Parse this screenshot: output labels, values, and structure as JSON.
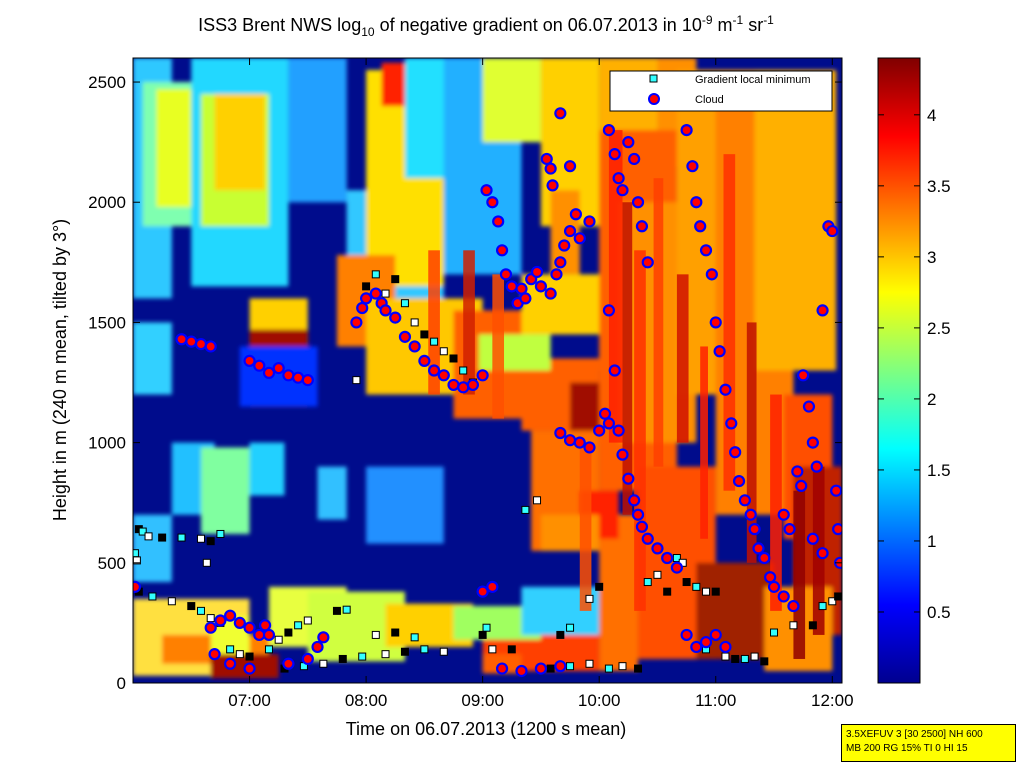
{
  "chart_data": {
    "type": "heatmap",
    "title": {
      "pre": "ISS3 Brent NWS log",
      "sub1": "10",
      "mid1": " of negative gradient on 06.07.2013 in 10",
      "sup1": "-9",
      "mid2": " m",
      "sup2": "-1",
      "mid3": " sr",
      "sup3": "-1"
    },
    "xlabel": "Time on 06.07.2013 (1200 s mean)",
    "ylabel": "Height in m (240 m mean, tilted by 3°)",
    "xlim": [
      "06:00",
      "12:05"
    ],
    "ylim": [
      0,
      2600
    ],
    "x_ticks": [
      "07:00",
      "08:00",
      "09:00",
      "10:00",
      "11:00",
      "12:00"
    ],
    "y_ticks": [
      0,
      500,
      1000,
      1500,
      2000,
      2500
    ],
    "colorbar": {
      "colormap": "jet",
      "range": [
        0,
        4.4
      ],
      "ticks": [
        0.5,
        1,
        1.5,
        2,
        2.5,
        3,
        3.5,
        4
      ]
    },
    "legend": {
      "placement": "top-right",
      "entries": [
        {
          "label": "Gradient local minimum",
          "marker": "square",
          "color": "#33ffff"
        },
        {
          "label": "Cloud",
          "marker": "circle",
          "color": "#ff0000"
        }
      ]
    },
    "series": [
      {
        "name": "Gradient local minimum",
        "points": [
          {
            "x": "06:01",
            "y": 540
          },
          {
            "x": "06:02",
            "y": 510
          },
          {
            "x": "06:03",
            "y": 640
          },
          {
            "x": "06:05",
            "y": 630
          },
          {
            "x": "06:08",
            "y": 610
          },
          {
            "x": "06:15",
            "y": 605
          },
          {
            "x": "06:25",
            "y": 605
          },
          {
            "x": "06:35",
            "y": 600
          },
          {
            "x": "06:40",
            "y": 590
          },
          {
            "x": "06:45",
            "y": 620
          },
          {
            "x": "06:38",
            "y": 500
          },
          {
            "x": "06:03",
            "y": 380
          },
          {
            "x": "06:10",
            "y": 360
          },
          {
            "x": "06:20",
            "y": 340
          },
          {
            "x": "06:30",
            "y": 320
          },
          {
            "x": "06:35",
            "y": 300
          },
          {
            "x": "06:40",
            "y": 270
          },
          {
            "x": "06:45",
            "y": 250
          },
          {
            "x": "06:50",
            "y": 140
          },
          {
            "x": "06:55",
            "y": 120
          },
          {
            "x": "07:00",
            "y": 110
          },
          {
            "x": "07:10",
            "y": 140
          },
          {
            "x": "07:15",
            "y": 180
          },
          {
            "x": "07:20",
            "y": 210
          },
          {
            "x": "07:25",
            "y": 240
          },
          {
            "x": "07:30",
            "y": 260
          },
          {
            "x": "07:18",
            "y": 60
          },
          {
            "x": "07:28",
            "y": 70
          },
          {
            "x": "07:38",
            "y": 80
          },
          {
            "x": "07:48",
            "y": 100
          },
          {
            "x": "07:58",
            "y": 110
          },
          {
            "x": "08:10",
            "y": 120
          },
          {
            "x": "08:20",
            "y": 130
          },
          {
            "x": "08:30",
            "y": 140
          },
          {
            "x": "08:40",
            "y": 130
          },
          {
            "x": "07:45",
            "y": 300
          },
          {
            "x": "07:50",
            "y": 305
          },
          {
            "x": "08:05",
            "y": 200
          },
          {
            "x": "08:15",
            "y": 210
          },
          {
            "x": "08:25",
            "y": 190
          },
          {
            "x": "07:55",
            "y": 1260
          },
          {
            "x": "08:00",
            "y": 1650
          },
          {
            "x": "08:05",
            "y": 1700
          },
          {
            "x": "08:10",
            "y": 1620
          },
          {
            "x": "08:15",
            "y": 1680
          },
          {
            "x": "08:20",
            "y": 1580
          },
          {
            "x": "08:25",
            "y": 1500
          },
          {
            "x": "08:30",
            "y": 1450
          },
          {
            "x": "08:35",
            "y": 1420
          },
          {
            "x": "08:40",
            "y": 1380
          },
          {
            "x": "08:45",
            "y": 1350
          },
          {
            "x": "08:50",
            "y": 1300
          },
          {
            "x": "08:55",
            "y": 1250
          },
          {
            "x": "09:00",
            "y": 200
          },
          {
            "x": "09:02",
            "y": 230
          },
          {
            "x": "09:05",
            "y": 140
          },
          {
            "x": "09:15",
            "y": 140
          },
          {
            "x": "09:22",
            "y": 720
          },
          {
            "x": "09:28",
            "y": 760
          },
          {
            "x": "09:35",
            "y": 60
          },
          {
            "x": "09:45",
            "y": 70
          },
          {
            "x": "09:55",
            "y": 80
          },
          {
            "x": "09:40",
            "y": 200
          },
          {
            "x": "09:45",
            "y": 230
          },
          {
            "x": "09:55",
            "y": 350
          },
          {
            "x": "10:00",
            "y": 400
          },
          {
            "x": "10:05",
            "y": 60
          },
          {
            "x": "10:12",
            "y": 70
          },
          {
            "x": "10:20",
            "y": 60
          },
          {
            "x": "10:25",
            "y": 420
          },
          {
            "x": "10:30",
            "y": 450
          },
          {
            "x": "10:35",
            "y": 380
          },
          {
            "x": "10:40",
            "y": 520
          },
          {
            "x": "10:43",
            "y": 500
          },
          {
            "x": "10:45",
            "y": 420
          },
          {
            "x": "10:50",
            "y": 400
          },
          {
            "x": "10:55",
            "y": 380
          },
          {
            "x": "11:00",
            "y": 380
          },
          {
            "x": "10:55",
            "y": 140
          },
          {
            "x": "11:05",
            "y": 110
          },
          {
            "x": "11:10",
            "y": 100
          },
          {
            "x": "11:15",
            "y": 100
          },
          {
            "x": "11:20",
            "y": 110
          },
          {
            "x": "11:25",
            "y": 90
          },
          {
            "x": "11:30",
            "y": 210
          },
          {
            "x": "11:40",
            "y": 240
          },
          {
            "x": "11:50",
            "y": 240
          },
          {
            "x": "11:55",
            "y": 320
          },
          {
            "x": "12:00",
            "y": 340
          },
          {
            "x": "12:03",
            "y": 360
          }
        ]
      },
      {
        "name": "Cloud",
        "points": [
          {
            "x": "06:01",
            "y": 400
          },
          {
            "x": "06:40",
            "y": 230
          },
          {
            "x": "06:45",
            "y": 260
          },
          {
            "x": "06:50",
            "y": 280
          },
          {
            "x": "06:55",
            "y": 250
          },
          {
            "x": "07:00",
            "y": 230
          },
          {
            "x": "07:05",
            "y": 200
          },
          {
            "x": "07:08",
            "y": 240
          },
          {
            "x": "07:10",
            "y": 200
          },
          {
            "x": "06:42",
            "y": 120
          },
          {
            "x": "06:50",
            "y": 80
          },
          {
            "x": "07:00",
            "y": 60
          },
          {
            "x": "07:20",
            "y": 80
          },
          {
            "x": "07:30",
            "y": 100
          },
          {
            "x": "07:35",
            "y": 150
          },
          {
            "x": "07:38",
            "y": 190
          },
          {
            "x": "07:00",
            "y": 1340
          },
          {
            "x": "07:05",
            "y": 1320
          },
          {
            "x": "07:10",
            "y": 1290
          },
          {
            "x": "07:15",
            "y": 1310
          },
          {
            "x": "07:20",
            "y": 1280
          },
          {
            "x": "07:25",
            "y": 1270
          },
          {
            "x": "07:30",
            "y": 1260
          },
          {
            "x": "06:25",
            "y": 1430
          },
          {
            "x": "06:30",
            "y": 1420
          },
          {
            "x": "06:35",
            "y": 1410
          },
          {
            "x": "06:40",
            "y": 1400
          },
          {
            "x": "07:55",
            "y": 1500
          },
          {
            "x": "07:58",
            "y": 1560
          },
          {
            "x": "08:00",
            "y": 1600
          },
          {
            "x": "08:05",
            "y": 1620
          },
          {
            "x": "08:08",
            "y": 1580
          },
          {
            "x": "08:10",
            "y": 1550
          },
          {
            "x": "08:15",
            "y": 1520
          },
          {
            "x": "08:20",
            "y": 1440
          },
          {
            "x": "08:25",
            "y": 1400
          },
          {
            "x": "08:30",
            "y": 1340
          },
          {
            "x": "08:35",
            "y": 1300
          },
          {
            "x": "08:40",
            "y": 1280
          },
          {
            "x": "08:45",
            "y": 1240
          },
          {
            "x": "08:50",
            "y": 1230
          },
          {
            "x": "08:55",
            "y": 1240
          },
          {
            "x": "09:00",
            "y": 1280
          },
          {
            "x": "09:02",
            "y": 2050
          },
          {
            "x": "09:05",
            "y": 2000
          },
          {
            "x": "09:08",
            "y": 1920
          },
          {
            "x": "09:10",
            "y": 1800
          },
          {
            "x": "09:12",
            "y": 1700
          },
          {
            "x": "09:15",
            "y": 1650
          },
          {
            "x": "09:18",
            "y": 1580
          },
          {
            "x": "09:20",
            "y": 1640
          },
          {
            "x": "09:22",
            "y": 1600
          },
          {
            "x": "09:25",
            "y": 1680
          },
          {
            "x": "09:28",
            "y": 1710
          },
          {
            "x": "09:30",
            "y": 1650
          },
          {
            "x": "09:35",
            "y": 1620
          },
          {
            "x": "09:38",
            "y": 1700
          },
          {
            "x": "09:40",
            "y": 1750
          },
          {
            "x": "09:42",
            "y": 1820
          },
          {
            "x": "09:45",
            "y": 1880
          },
          {
            "x": "09:48",
            "y": 1950
          },
          {
            "x": "09:50",
            "y": 1850
          },
          {
            "x": "09:33",
            "y": 2180
          },
          {
            "x": "09:35",
            "y": 2140
          },
          {
            "x": "09:36",
            "y": 2070
          },
          {
            "x": "09:40",
            "y": 2370
          },
          {
            "x": "09:45",
            "y": 2150
          },
          {
            "x": "09:55",
            "y": 1920
          },
          {
            "x": "09:40",
            "y": 1040
          },
          {
            "x": "09:45",
            "y": 1010
          },
          {
            "x": "09:50",
            "y": 1000
          },
          {
            "x": "09:55",
            "y": 980
          },
          {
            "x": "10:00",
            "y": 1050
          },
          {
            "x": "10:03",
            "y": 1120
          },
          {
            "x": "10:05",
            "y": 1080
          },
          {
            "x": "09:00",
            "y": 380
          },
          {
            "x": "09:05",
            "y": 400
          },
          {
            "x": "09:10",
            "y": 60
          },
          {
            "x": "09:20",
            "y": 50
          },
          {
            "x": "09:30",
            "y": 60
          },
          {
            "x": "09:40",
            "y": 70
          },
          {
            "x": "10:05",
            "y": 2300
          },
          {
            "x": "10:08",
            "y": 2200
          },
          {
            "x": "10:10",
            "y": 2100
          },
          {
            "x": "10:12",
            "y": 2050
          },
          {
            "x": "10:15",
            "y": 2250
          },
          {
            "x": "10:18",
            "y": 2180
          },
          {
            "x": "10:20",
            "y": 2000
          },
          {
            "x": "10:22",
            "y": 1900
          },
          {
            "x": "10:25",
            "y": 1750
          },
          {
            "x": "10:05",
            "y": 1550
          },
          {
            "x": "10:08",
            "y": 1300
          },
          {
            "x": "10:10",
            "y": 1050
          },
          {
            "x": "10:12",
            "y": 950
          },
          {
            "x": "10:15",
            "y": 850
          },
          {
            "x": "10:18",
            "y": 760
          },
          {
            "x": "10:20",
            "y": 700
          },
          {
            "x": "10:22",
            "y": 650
          },
          {
            "x": "10:25",
            "y": 600
          },
          {
            "x": "10:30",
            "y": 560
          },
          {
            "x": "10:35",
            "y": 520
          },
          {
            "x": "10:40",
            "y": 480
          },
          {
            "x": "10:45",
            "y": 2300
          },
          {
            "x": "10:48",
            "y": 2150
          },
          {
            "x": "10:50",
            "y": 2000
          },
          {
            "x": "10:52",
            "y": 1900
          },
          {
            "x": "10:55",
            "y": 1800
          },
          {
            "x": "10:58",
            "y": 1700
          },
          {
            "x": "11:00",
            "y": 1500
          },
          {
            "x": "11:02",
            "y": 1380
          },
          {
            "x": "11:05",
            "y": 1220
          },
          {
            "x": "11:08",
            "y": 1080
          },
          {
            "x": "11:10",
            "y": 960
          },
          {
            "x": "11:12",
            "y": 840
          },
          {
            "x": "11:15",
            "y": 760
          },
          {
            "x": "11:18",
            "y": 700
          },
          {
            "x": "11:20",
            "y": 640
          },
          {
            "x": "11:22",
            "y": 560
          },
          {
            "x": "11:25",
            "y": 520
          },
          {
            "x": "11:28",
            "y": 440
          },
          {
            "x": "11:30",
            "y": 400
          },
          {
            "x": "11:35",
            "y": 360
          },
          {
            "x": "11:40",
            "y": 320
          },
          {
            "x": "11:45",
            "y": 1280
          },
          {
            "x": "11:48",
            "y": 1150
          },
          {
            "x": "11:50",
            "y": 1000
          },
          {
            "x": "11:52",
            "y": 900
          },
          {
            "x": "11:55",
            "y": 1550
          },
          {
            "x": "11:58",
            "y": 1900
          },
          {
            "x": "12:00",
            "y": 1880
          },
          {
            "x": "12:02",
            "y": 800
          },
          {
            "x": "12:03",
            "y": 640
          },
          {
            "x": "12:04",
            "y": 500
          },
          {
            "x": "10:45",
            "y": 200
          },
          {
            "x": "10:50",
            "y": 150
          },
          {
            "x": "10:55",
            "y": 170
          },
          {
            "x": "11:00",
            "y": 200
          },
          {
            "x": "11:05",
            "y": 150
          },
          {
            "x": "11:35",
            "y": 700
          },
          {
            "x": "11:38",
            "y": 640
          },
          {
            "x": "11:42",
            "y": 880
          },
          {
            "x": "11:44",
            "y": 820
          },
          {
            "x": "11:50",
            "y": 600
          },
          {
            "x": "11:55",
            "y": 540
          }
        ]
      }
    ]
  },
  "info_box": {
    "line1": "3.5XEFUV 3 [30 2500] NH 600",
    "line2": "MB 200 RG 15% TI 0 HI 15"
  }
}
